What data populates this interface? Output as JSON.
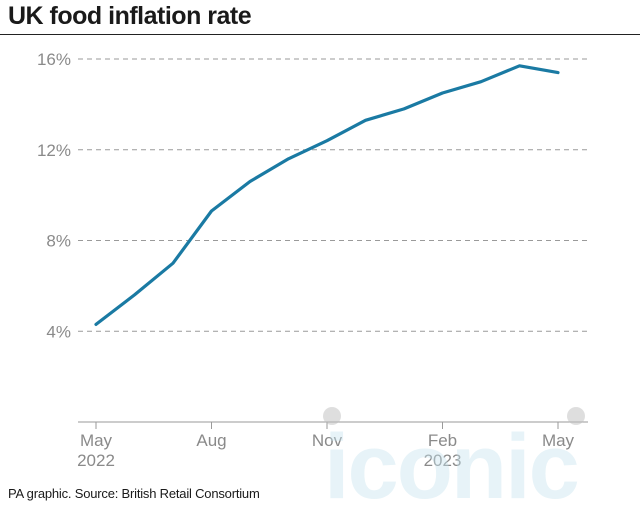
{
  "chart_data": {
    "type": "line",
    "title": "UK food inflation rate",
    "source": "PA graphic. Source: British Retail Consortium",
    "y_ticks": [
      4,
      8,
      12,
      16
    ],
    "y_tick_labels": [
      "4%",
      "8%",
      "12%",
      "16%"
    ],
    "ylim": [
      0,
      16
    ],
    "x_ticks": [
      {
        "month_index": 0,
        "label": "May",
        "sublabel": "2022"
      },
      {
        "month_index": 3,
        "label": "Aug",
        "sublabel": ""
      },
      {
        "month_index": 6,
        "label": "Nov",
        "sublabel": ""
      },
      {
        "month_index": 9,
        "label": "Feb",
        "sublabel": "2023"
      },
      {
        "month_index": 12,
        "label": "May",
        "sublabel": ""
      }
    ],
    "grid": "horizontal dashed",
    "legend": "none",
    "series": [
      {
        "color": "#1a7aa3",
        "x": [
          "May 2022",
          "Jun 2022",
          "Jul 2022",
          "Aug 2022",
          "Sep 2022",
          "Oct 2022",
          "Nov 2022",
          "Dec 2022",
          "Jan 2023",
          "Feb 2023",
          "Mar 2023",
          "Apr 2023",
          "May 2023"
        ],
        "values": [
          4.3,
          5.6,
          7.0,
          9.3,
          10.6,
          11.6,
          12.4,
          13.3,
          13.8,
          14.5,
          15.0,
          15.7,
          15.4
        ]
      }
    ]
  },
  "watermark": {
    "text": "iconic"
  }
}
